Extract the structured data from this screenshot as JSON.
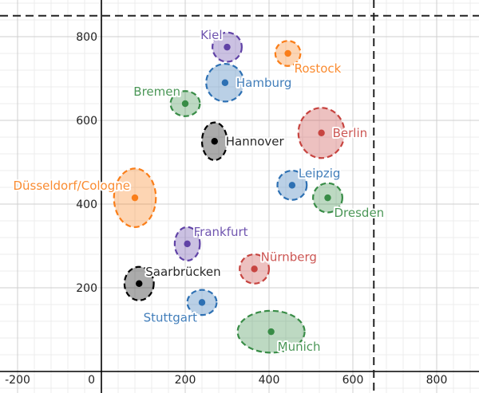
{
  "chart_data": {
    "type": "scatter",
    "title": "",
    "xlabel": "",
    "ylabel": "",
    "xlim": [
      -235,
      900
    ],
    "ylim": [
      -48,
      880
    ],
    "grid": true,
    "x_ticks": [
      -200,
      0,
      200,
      400,
      600,
      800
    ],
    "y_ticks": [
      200,
      400,
      600,
      800
    ],
    "x_tick_labels": [
      "-200",
      "0",
      "200",
      "400",
      "600",
      "800"
    ],
    "y_tick_labels": [
      "200",
      "400",
      "600",
      "800"
    ],
    "dashed_lines": {
      "horizontal_y": 850,
      "vertical_x": 650
    },
    "colors": {
      "red": "#c74440",
      "blue": "#2d70b3",
      "green": "#388c46",
      "purple": "#6042a6",
      "orange": "#fa7e19",
      "black": "#000000"
    },
    "points": [
      {
        "label": "Kiel",
        "x": 300,
        "y": 775,
        "rx": 35,
        "ry": 35,
        "color": "purple",
        "label_pos": "top-left"
      },
      {
        "label": "Rostock",
        "x": 445,
        "y": 760,
        "rx": 30,
        "ry": 30,
        "color": "orange",
        "label_pos": "bottom-right"
      },
      {
        "label": "Hamburg",
        "x": 295,
        "y": 690,
        "rx": 45,
        "ry": 45,
        "color": "blue",
        "label_pos": "right"
      },
      {
        "label": "Bremen",
        "x": 200,
        "y": 640,
        "rx": 35,
        "ry": 30,
        "color": "green",
        "label_pos": "top-left"
      },
      {
        "label": "Hannover",
        "x": 270,
        "y": 550,
        "rx": 30,
        "ry": 45,
        "color": "black",
        "label_pos": "right"
      },
      {
        "label": "Berlin",
        "x": 525,
        "y": 570,
        "rx": 55,
        "ry": 60,
        "color": "red",
        "label_pos": "right"
      },
      {
        "label": "Düsseldorf/Cologne",
        "x": 80,
        "y": 415,
        "rx": 50,
        "ry": 70,
        "color": "orange",
        "label_pos": "top-left"
      },
      {
        "label": "Leipzig",
        "x": 455,
        "y": 445,
        "rx": 35,
        "ry": 35,
        "color": "blue",
        "label_pos": "top-right"
      },
      {
        "label": "Dresden",
        "x": 540,
        "y": 415,
        "rx": 35,
        "ry": 35,
        "color": "green",
        "label_pos": "bottom-right"
      },
      {
        "label": "Frankfurt",
        "x": 205,
        "y": 305,
        "rx": 30,
        "ry": 40,
        "color": "purple",
        "label_pos": "top-right"
      },
      {
        "label": "Nürnberg",
        "x": 365,
        "y": 245,
        "rx": 35,
        "ry": 35,
        "color": "red",
        "label_pos": "top-right"
      },
      {
        "label": "Saarbrücken",
        "x": 90,
        "y": 210,
        "rx": 35,
        "ry": 40,
        "color": "black",
        "label_pos": "top-right"
      },
      {
        "label": "Stuttgart",
        "x": 240,
        "y": 165,
        "rx": 35,
        "ry": 30,
        "color": "blue",
        "label_pos": "bottom-left"
      },
      {
        "label": "Munich",
        "x": 405,
        "y": 95,
        "rx": 80,
        "ry": 50,
        "color": "green",
        "label_pos": "bottom-right"
      }
    ]
  }
}
